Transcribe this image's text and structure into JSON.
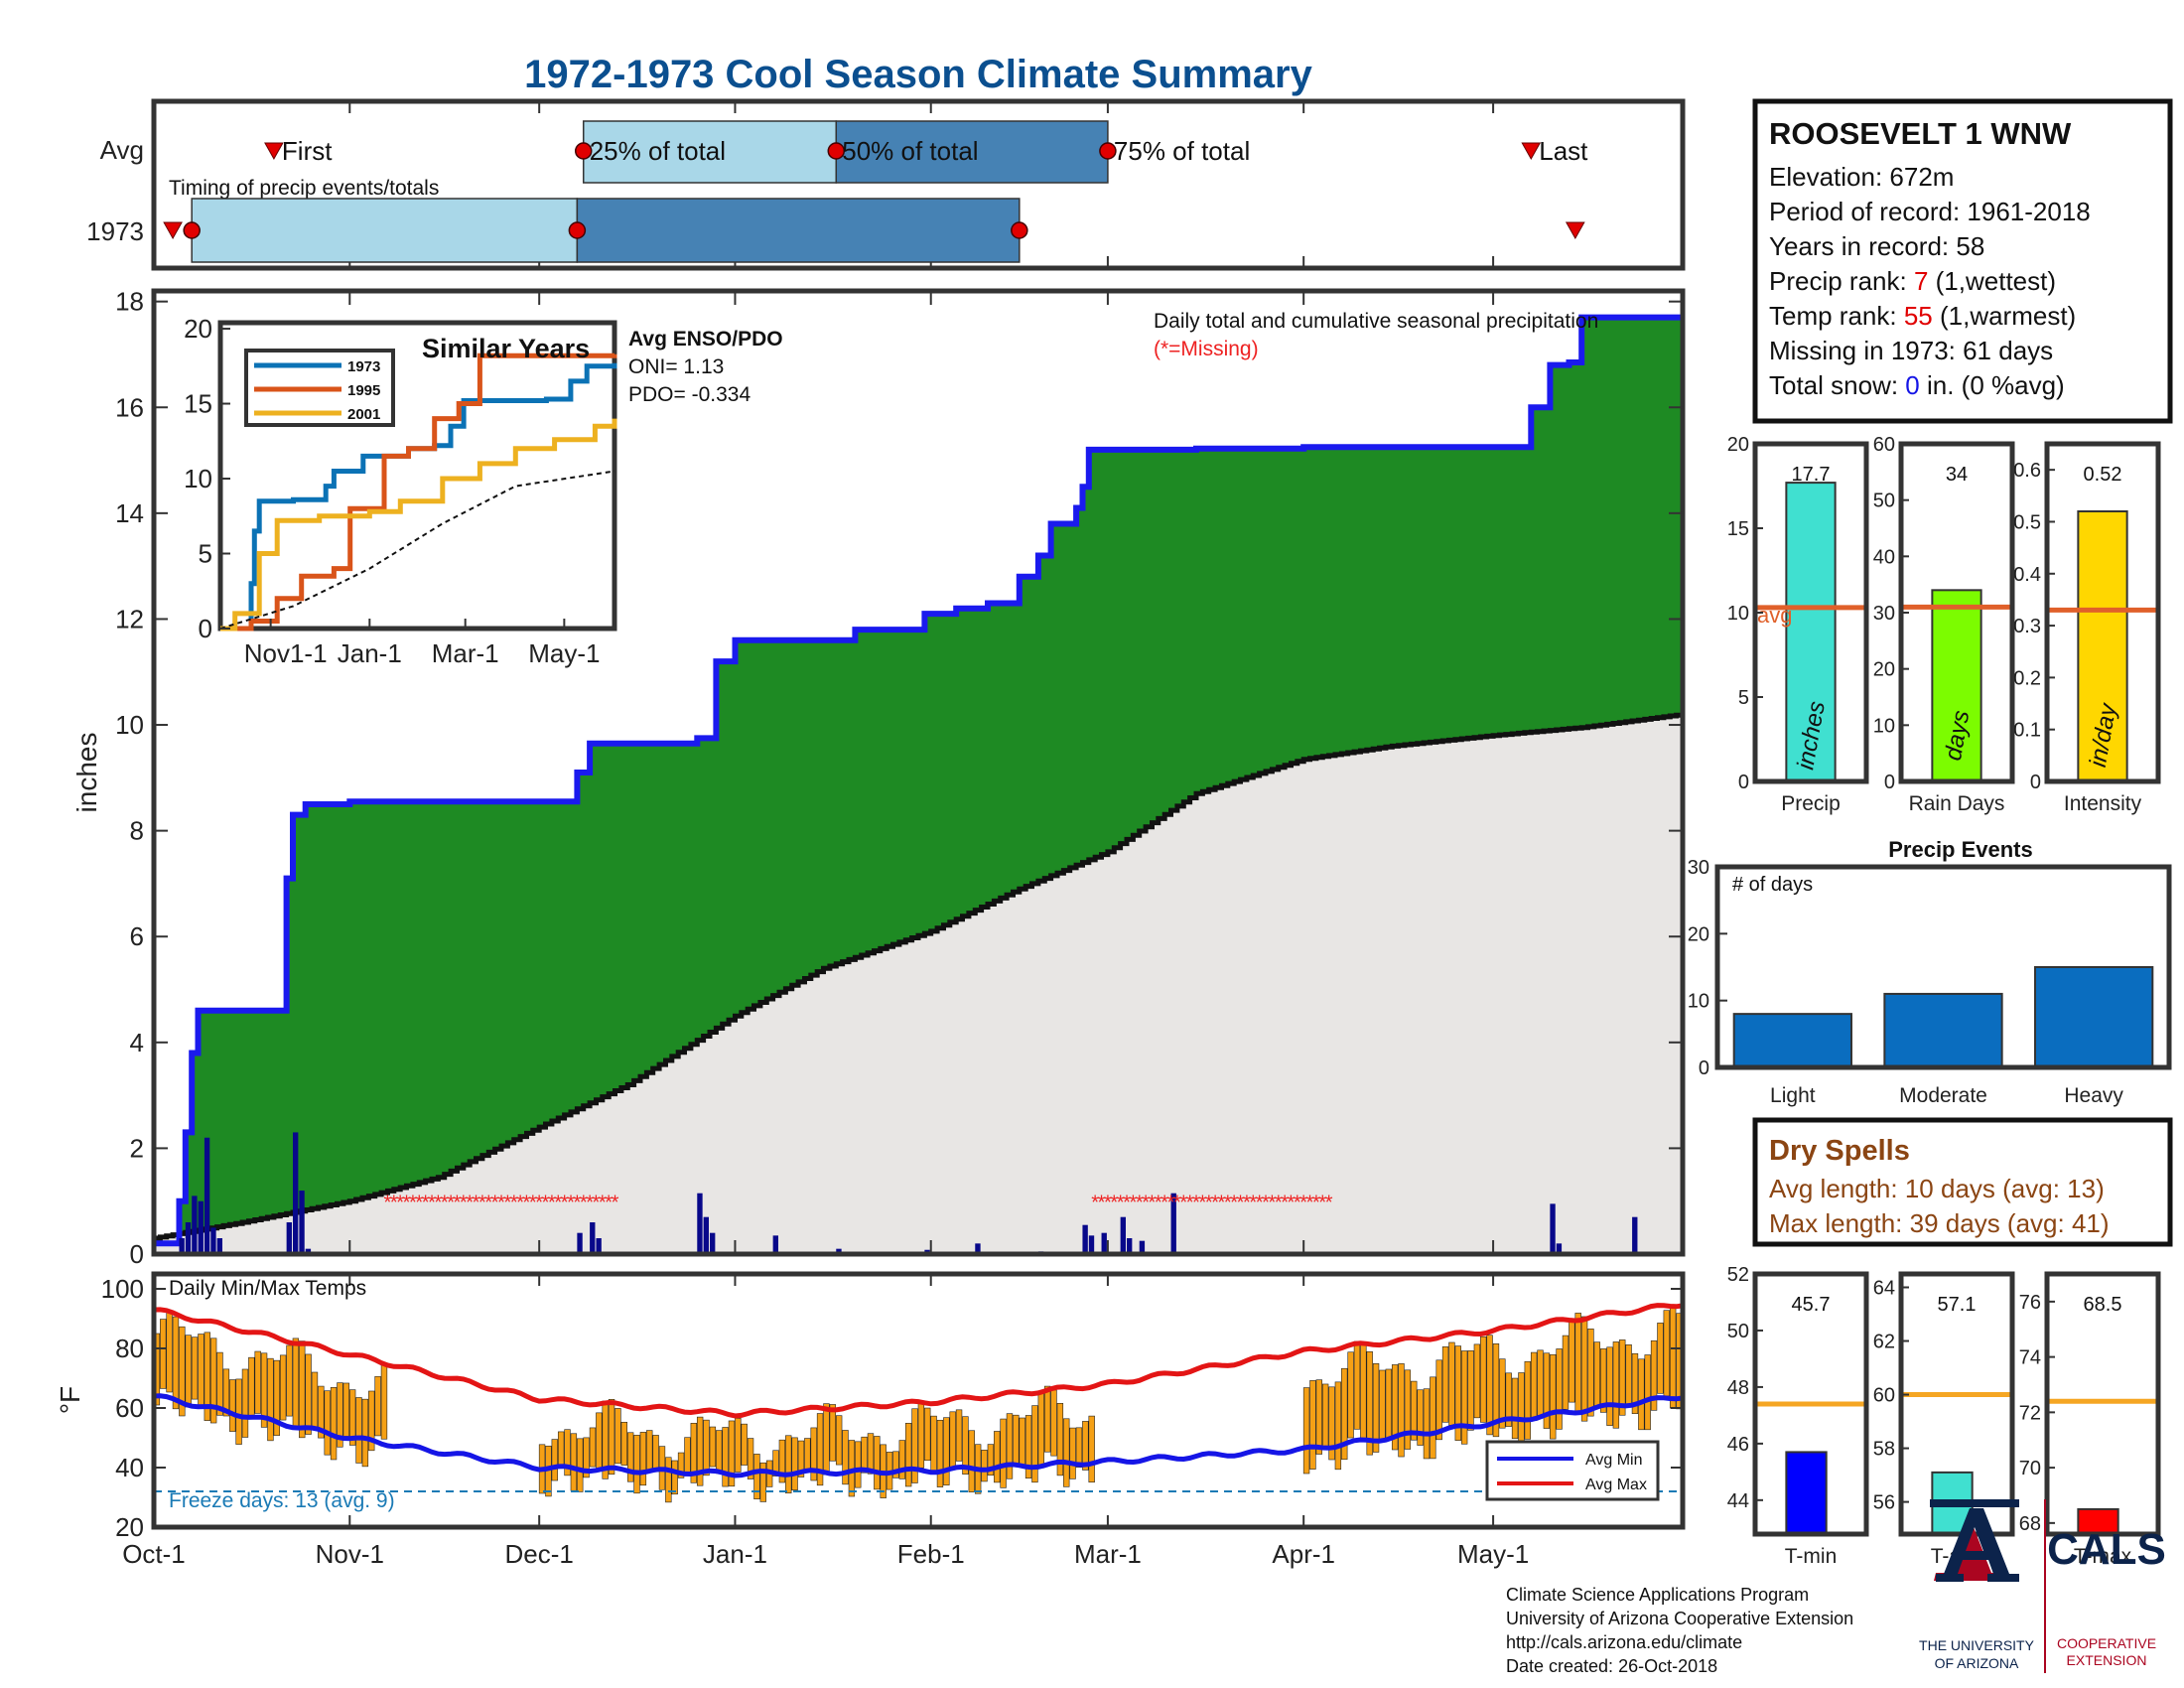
{
  "title": "1972-1973 Cool Season Climate Summary",
  "colors": {
    "title": "#0b4f8f",
    "precip_fill": "#1e8a23",
    "cum_line": "#1a1aee",
    "avg_fill": "#e8e6e4",
    "daily_bar": "#08088a",
    "missing": "#ee2222",
    "temp_bar": "#f5a015",
    "avg_min": "#1515e6",
    "avg_max": "#e31515",
    "freeze": "#1a7ab5",
    "light_blue": "#a9d7e8",
    "mid_blue": "#4682b4",
    "dot": "#e00000",
    "event_bar": "#0a6dbf",
    "dry_text": "#8b4513",
    "avg_line": "#e0602a",
    "temp_avg_line": "#f5a623"
  },
  "timing": {
    "row_labels": [
      "Avg",
      "1973"
    ],
    "subtitle": "Timing of precip events/totals",
    "labels": {
      "first": "First",
      "p25": "25% of total",
      "p50": "50% of total",
      "p75": "75% of total",
      "last": "Last"
    },
    "avg": {
      "first": "1972-10-20",
      "p25": "1972-12-08",
      "p50": "1973-01-17",
      "p75": "1973-03-01",
      "last": "1973-05-07"
    },
    "y1973": {
      "first_tri": "1972-10-04",
      "first": "1972-10-07",
      "p25": "1972-12-07",
      "p50": "1973-02-15",
      "last_tri": "1973-05-14"
    }
  },
  "station": {
    "name": "ROOSEVELT 1 WNW",
    "elevation": "Elevation: 672m",
    "period": "Period of record: 1961-2018",
    "years": "Years in record: 58",
    "precip_rank_pre": "Precip rank: ",
    "precip_rank_val": "7",
    "precip_rank_post": " (1,wettest)",
    "temp_rank_pre": "Temp rank: ",
    "temp_rank_val": "55",
    "temp_rank_post": " (1,warmest)",
    "missing": "Missing in 1973: 61 days",
    "snow_pre": "Total snow: ",
    "snow_val": "0",
    "snow_post": " in. (0 %avg)"
  },
  "main_chart": {
    "ylabel": "inches",
    "annotation": "Daily total and cumulative seasonal precipitation",
    "missing_note": "(*=Missing)",
    "yticks": [
      0,
      2,
      4,
      6,
      8,
      10,
      12,
      14,
      16,
      18
    ],
    "xticks": [
      {
        "date": "1972-10-01",
        "label": "Oct-1"
      },
      {
        "date": "1972-11-01",
        "label": "Nov-1"
      },
      {
        "date": "1972-12-01",
        "label": "Dec-1"
      },
      {
        "date": "1973-01-01",
        "label": "Jan-1"
      },
      {
        "date": "1973-02-01",
        "label": "Feb-1"
      },
      {
        "date": "1973-03-01",
        "label": "Mar-1"
      },
      {
        "date": "1973-04-01",
        "label": "Apr-1"
      },
      {
        "date": "1973-05-01",
        "label": "May-1"
      }
    ]
  },
  "inset": {
    "title": "Similar Years",
    "enso_title": "Avg ENSO/PDO",
    "oni": "ONI= 1.13",
    "pdo": "PDO= -0.334",
    "legend": [
      {
        "name": "1973",
        "color": "#0b72b5"
      },
      {
        "name": "1995",
        "color": "#d9541a"
      },
      {
        "name": "2001",
        "color": "#edb120"
      }
    ],
    "yticks": [
      0,
      5,
      10,
      15,
      20
    ],
    "xticks": [
      {
        "date": "1972-11-01",
        "label": "Nov1-1"
      },
      {
        "date": "1973-01-01",
        "label": "Jan-1"
      },
      {
        "date": "1973-03-01",
        "label": "Mar-1"
      },
      {
        "date": "1973-05-01",
        "label": "May-1"
      }
    ]
  },
  "temp_chart": {
    "title": "Daily Min/Max Temps",
    "ylabel": "°F",
    "freeze_text": "Freeze days: 13 (avg. 9)",
    "legend_min": "Avg Min",
    "legend_max": "Avg Max",
    "yticks": [
      20,
      40,
      60,
      80,
      100
    ]
  },
  "right_bars": [
    {
      "xlabel": "Precip",
      "value": 17.7,
      "value_label": "17.7",
      "avg": 10.3,
      "unit": "inches",
      "ymax": 20,
      "yticks": [
        0,
        5,
        10,
        15,
        20
      ],
      "color": "#40e0d0",
      "avg_label": "avg"
    },
    {
      "xlabel": "Rain Days",
      "value": 34,
      "value_label": "34",
      "avg": 31,
      "unit": "days",
      "ymax": 60,
      "yticks": [
        0,
        10,
        20,
        30,
        40,
        50,
        60
      ],
      "color": "#7cfc00"
    },
    {
      "xlabel": "Intensity",
      "value": 0.52,
      "value_label": "0.52",
      "avg": 0.33,
      "unit": "in/day",
      "ymax": 0.65,
      "yticks": [
        0,
        0.1,
        0.2,
        0.3,
        0.4,
        0.5,
        0.6
      ],
      "color": "#ffd700"
    }
  ],
  "events": {
    "title": "Precip Events",
    "ylabel": "# of days",
    "categories": [
      "Light",
      "Moderate",
      "Heavy"
    ],
    "values": [
      8,
      11,
      15
    ],
    "yticks": [
      0,
      10,
      20,
      30
    ]
  },
  "dry_spells": {
    "title": "Dry Spells",
    "avg_length": "Avg length: 10 days (avg: 13)",
    "max_length": "Max length: 39 days (avg: 41)"
  },
  "temp_bars": [
    {
      "xlabel": "T-min",
      "value": 45.7,
      "value_label": "45.7",
      "avg": 47.4,
      "ymin": 42.8,
      "ymax": 52,
      "yticks": [
        44,
        46,
        48,
        50,
        52
      ],
      "color": "#0000ff"
    },
    {
      "xlabel": "T-avg",
      "value": 57.1,
      "value_label": "57.1",
      "avg": 60,
      "ymin": 54.8,
      "ymax": 64.5,
      "yticks": [
        56,
        58,
        60,
        62,
        64
      ],
      "color": "#40e0d0"
    },
    {
      "xlabel": "T-max",
      "value": 68.5,
      "value_label": "68.5",
      "avg": 72.4,
      "ymin": 67.6,
      "ymax": 77,
      "yticks": [
        68,
        70,
        72,
        74,
        76
      ],
      "color": "#ff0000"
    }
  ],
  "footer": {
    "line1": "Climate Science Applications Program",
    "line2": "University of Arizona Cooperative Extension",
    "line3": "http://cals.arizona.edu/climate",
    "line4": " Date created: 26-Oct-2018",
    "ua_line1": "THE UNIVERSITY",
    "ua_line2": "OF ARIZONA",
    "cals": "CALS",
    "cals_line1": "COOPERATIVE",
    "cals_line2": "EXTENSION"
  },
  "chart_data": [
    {
      "type": "area",
      "title": "",
      "xlabel": "",
      "ylabel": "inches",
      "ylim": [
        0,
        18.2
      ],
      "series": [
        {
          "name": "",
          "x": [
            "1972-10-01",
            "1972-10-05",
            "1972-10-06",
            "1972-10-07",
            "1972-10-08",
            "1972-10-15",
            "1972-10-20",
            "1972-10-22",
            "1972-10-23",
            "1972-10-25",
            "1972-11-01",
            "1972-11-15",
            "1972-11-30",
            "1972-12-01",
            "1972-12-07",
            "1972-12-09",
            "1972-12-26",
            "1972-12-29",
            "1973-01-01",
            "1973-01-20",
            "1973-01-31",
            "1973-02-05",
            "1973-02-10",
            "1973-02-15",
            "1973-02-18",
            "1973-02-20",
            "1973-02-24",
            "1973-02-25",
            "1973-02-26",
            "1973-03-15",
            "1973-04-01",
            "1973-04-15",
            "1973-05-01",
            "1973-05-07",
            "1973-05-10",
            "1973-05-13",
            "1973-05-15",
            "1973-05-31"
          ],
          "values": [
            0.2,
            1.0,
            2.3,
            3.8,
            4.6,
            4.6,
            4.6,
            7.1,
            8.3,
            8.5,
            8.55,
            8.55,
            8.55,
            8.55,
            9.1,
            9.65,
            9.75,
            11.2,
            11.6,
            11.8,
            12.1,
            12.2,
            12.3,
            12.8,
            13.2,
            13.8,
            14.1,
            14.5,
            15.2,
            15.22,
            15.25,
            15.25,
            15.25,
            16.0,
            16.8,
            16.85,
            17.7,
            17.7
          ]
        },
        {
          "name": "",
          "x": [
            "1972-10-01",
            "1972-10-15",
            "1972-11-01",
            "1972-11-15",
            "1972-12-01",
            "1972-12-15",
            "1973-01-01",
            "1973-01-15",
            "1973-02-01",
            "1973-02-15",
            "1973-03-01",
            "1973-03-15",
            "1973-04-01",
            "1973-04-15",
            "1973-05-01",
            "1973-05-15",
            "1973-05-31"
          ],
          "values": [
            0.3,
            0.6,
            1.0,
            1.45,
            2.4,
            3.2,
            4.5,
            5.4,
            6.1,
            6.9,
            7.6,
            8.7,
            9.35,
            9.6,
            9.8,
            9.95,
            10.2
          ]
        }
      ]
    },
    {
      "type": "line",
      "title": "Similar Years",
      "ylim": [
        0,
        20
      ],
      "series": [
        {
          "name": "1973",
          "x": [
            "1972-10-01",
            "1972-10-20",
            "1972-10-22",
            "1972-10-25",
            "1972-11-15",
            "1972-12-05",
            "1972-12-10",
            "1972-12-28",
            "1973-01-25",
            "1973-02-10",
            "1973-02-20",
            "1973-02-28",
            "1973-04-20",
            "1973-05-05",
            "1973-05-15",
            "1973-06-01"
          ],
          "values": [
            0,
            3,
            6.5,
            8.5,
            8.6,
            9.5,
            10.5,
            11.5,
            12,
            12.2,
            13.5,
            15.2,
            15.3,
            16.5,
            17.5,
            17.7
          ]
        },
        {
          "name": "1995",
          "x": [
            "1972-10-01",
            "1972-10-20",
            "1972-11-05",
            "1972-11-20",
            "1972-12-10",
            "1972-12-20",
            "1973-01-10",
            "1973-01-25",
            "1973-02-10",
            "1973-02-25",
            "1973-03-10",
            "1973-06-01"
          ],
          "values": [
            0,
            0.5,
            2,
            3.5,
            4,
            8,
            11.5,
            12,
            14,
            15,
            18.2,
            18.3
          ]
        },
        {
          "name": "2001",
          "x": [
            "1972-10-01",
            "1972-10-10",
            "1972-10-25",
            "1972-11-05",
            "1972-12-01",
            "1973-01-01",
            "1973-01-20",
            "1973-02-15",
            "1973-03-10",
            "1973-04-01",
            "1973-04-25",
            "1973-05-20",
            "1973-06-01"
          ],
          "values": [
            0,
            1,
            5,
            7.2,
            7.5,
            7.8,
            8.5,
            10,
            11,
            12,
            12.6,
            13.5,
            14
          ]
        },
        {
          "name": "",
          "x": [
            "1972-10-01",
            "1972-11-15",
            "1973-01-01",
            "1973-02-15",
            "1973-04-01",
            "1973-06-01"
          ],
          "values": [
            0,
            1.5,
            4,
            7,
            9.5,
            10.5
          ]
        }
      ]
    },
    {
      "type": "bar",
      "title": "Daily Min/Max Temps",
      "ylabel": "°F",
      "ylim": [
        20,
        105
      ],
      "series": [
        {
          "name": "Avg Min",
          "x": [
            "1972-10-01",
            "1972-11-01",
            "1972-12-01",
            "1973-01-01",
            "1973-02-01",
            "1973-03-01",
            "1973-04-01",
            "1973-05-01",
            "1973-05-31"
          ],
          "values": [
            64,
            50,
            40,
            38,
            39,
            42,
            46,
            55,
            64
          ]
        },
        {
          "name": "Avg Max",
          "x": [
            "1972-10-01",
            "1972-11-01",
            "1972-12-01",
            "1973-01-01",
            "1973-02-01",
            "1973-03-01",
            "1973-04-01",
            "1973-05-01",
            "1973-05-31"
          ],
          "values": [
            93,
            78,
            63,
            58,
            62,
            68,
            79,
            86,
            95
          ]
        }
      ]
    },
    {
      "type": "bar",
      "categories": [
        "Precip"
      ],
      "values": [
        17.7
      ],
      "ylim": [
        0,
        20
      ]
    },
    {
      "type": "bar",
      "categories": [
        "Rain Days"
      ],
      "values": [
        34
      ],
      "ylim": [
        0,
        60
      ]
    },
    {
      "type": "bar",
      "categories": [
        "Intensity"
      ],
      "values": [
        0.52
      ],
      "ylim": [
        0,
        0.65
      ]
    },
    {
      "type": "bar",
      "title": "Precip Events",
      "categories": [
        "Light",
        "Moderate",
        "Heavy"
      ],
      "values": [
        8,
        11,
        15
      ],
      "ylim": [
        0,
        30
      ]
    },
    {
      "type": "bar",
      "categories": [
        "T-min"
      ],
      "values": [
        45.7
      ]
    },
    {
      "type": "bar",
      "categories": [
        "T-avg"
      ],
      "values": [
        57.1
      ]
    },
    {
      "type": "bar",
      "categories": [
        "T-max"
      ],
      "values": [
        68.5
      ]
    }
  ]
}
